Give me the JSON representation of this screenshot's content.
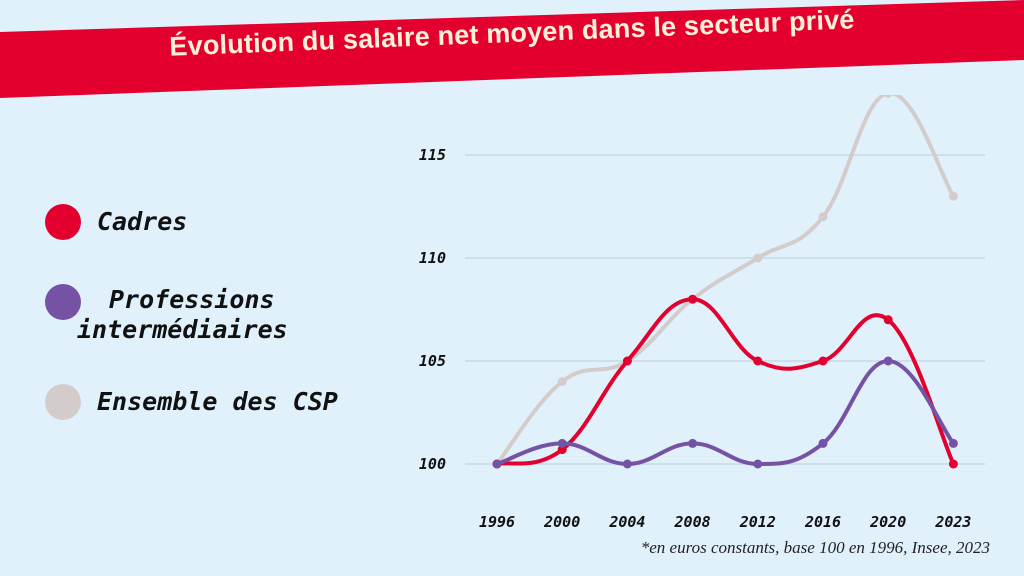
{
  "title": "Évolution du salaire net moyen dans le secteur privé",
  "footnote": "*en euros constants, base 100 en 1996, Insee, 2023",
  "colors": {
    "background": "#e1f1fc",
    "banner": "#e3002f",
    "title_text": "#fdf0d5",
    "grid": "#c8d9e6"
  },
  "chart_data": {
    "type": "line",
    "title": "Évolution du salaire net moyen dans le secteur privé",
    "xlabel": "",
    "ylabel": "",
    "x": [
      "1996",
      "2000",
      "2004",
      "2008",
      "2012",
      "2016",
      "2020",
      "2023"
    ],
    "ylim": [
      100,
      115
    ],
    "yticks": [
      "100",
      "105",
      "110",
      "115"
    ],
    "grid": true,
    "legend_position": "left",
    "series": [
      {
        "name": "Ensemble des CSP",
        "color": "#d3cccb",
        "values": [
          100,
          104,
          105,
          108,
          110,
          112,
          118,
          113
        ]
      },
      {
        "name": "Cadres",
        "color": "#e3002f",
        "values": [
          100,
          100.7,
          105,
          108,
          105,
          105,
          107,
          100
        ]
      },
      {
        "name": "Professions intermédiaires",
        "color": "#7552a3",
        "values": [
          100,
          101,
          100,
          101,
          100,
          101,
          105,
          101
        ]
      }
    ]
  },
  "legend": [
    {
      "label": "Cadres",
      "color": "#e3002f"
    },
    {
      "label_line1": "Professions",
      "label_line2": "intermédiaires",
      "color": "#7552a3"
    },
    {
      "label": "Ensemble des CSP",
      "color": "#d3cccb"
    }
  ]
}
